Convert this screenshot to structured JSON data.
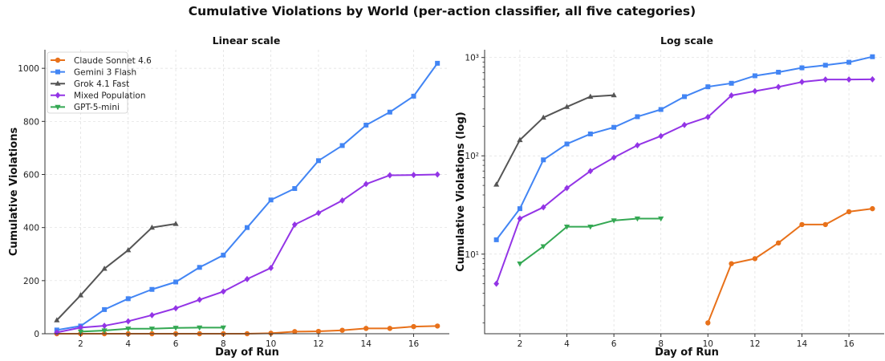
{
  "figure": {
    "title": "Cumulative Violations by World (per-action classifier, all five categories)"
  },
  "chart_data": [
    {
      "type": "line",
      "title": "Linear scale",
      "xlabel": "Day of Run",
      "ylabel": "Cumulative Violations",
      "xlim": [
        0.5,
        17.5
      ],
      "ylim": [
        0,
        1070
      ],
      "xticks": [
        2,
        4,
        6,
        8,
        10,
        12,
        14,
        16
      ],
      "yticks": [
        0,
        200,
        400,
        600,
        800,
        1000
      ],
      "yscale": "linear",
      "grid": true,
      "legend": "top-left",
      "series": [
        {
          "name": "Claude Sonnet 4.6",
          "color": "#e8711a",
          "marker": "circle",
          "x": [
            1,
            2,
            3,
            4,
            5,
            6,
            7,
            8,
            9,
            10,
            11,
            12,
            13,
            14,
            15,
            16,
            17
          ],
          "y": [
            0,
            0,
            0,
            0,
            0,
            0,
            0,
            0,
            0,
            2,
            8,
            9,
            13,
            20,
            20,
            27,
            29
          ]
        },
        {
          "name": "Gemini 3 Flash",
          "color": "#4285f4",
          "marker": "square",
          "x": [
            1,
            2,
            3,
            4,
            5,
            6,
            7,
            8,
            9,
            10,
            11,
            12,
            13,
            14,
            15,
            16,
            17
          ],
          "y": [
            14,
            29,
            91,
            132,
            167,
            195,
            250,
            296,
            400,
            504,
            547,
            652,
            709,
            786,
            835,
            895,
            1019
          ]
        },
        {
          "name": "Grok 4.1 Fast",
          "color": "#555555",
          "marker": "triangle-up",
          "x": [
            1,
            2,
            3,
            4,
            5,
            6
          ],
          "y": [
            51,
            145,
            245,
            315,
            400,
            414
          ]
        },
        {
          "name": "Mixed Population",
          "color": "#9334e6",
          "marker": "diamond",
          "x": [
            1,
            2,
            3,
            4,
            5,
            6,
            7,
            8,
            9,
            10,
            11,
            12,
            13,
            14,
            15,
            16,
            17
          ],
          "y": [
            5,
            23,
            30,
            47,
            70,
            96,
            128,
            159,
            206,
            248,
            411,
            455,
            502,
            564,
            597,
            598,
            600
          ]
        },
        {
          "name": "GPT-5-mini",
          "color": "#34a853",
          "marker": "triangle-down",
          "x": [
            2,
            3,
            4,
            5,
            6,
            7,
            8
          ],
          "y": [
            8,
            12,
            19,
            19,
            22,
            23,
            23
          ]
        }
      ]
    },
    {
      "type": "line",
      "title": "Log scale",
      "xlabel": "Day of Run",
      "ylabel": "Cumulative Violations (log)",
      "xlim": [
        0.5,
        17.5
      ],
      "ylim": [
        1.55,
        1200
      ],
      "xticks": [
        2,
        4,
        6,
        8,
        10,
        12,
        14,
        16
      ],
      "yticks": [
        10,
        100,
        1000
      ],
      "yticklabels": [
        "10¹",
        "10²",
        "10³"
      ],
      "yscale": "log",
      "grid": true,
      "legend": "none",
      "series": [
        {
          "name": "Claude Sonnet 4.6",
          "color": "#e8711a",
          "marker": "circle",
          "x": [
            10,
            11,
            12,
            13,
            14,
            15,
            16,
            17
          ],
          "y": [
            2,
            8,
            9,
            13,
            20,
            20,
            27,
            29
          ]
        },
        {
          "name": "Gemini 3 Flash",
          "color": "#4285f4",
          "marker": "square",
          "x": [
            1,
            2,
            3,
            4,
            5,
            6,
            7,
            8,
            9,
            10,
            11,
            12,
            13,
            14,
            15,
            16,
            17
          ],
          "y": [
            14,
            29,
            91,
            132,
            167,
            195,
            250,
            296,
            400,
            504,
            547,
            652,
            709,
            786,
            835,
            895,
            1019
          ]
        },
        {
          "name": "Grok 4.1 Fast",
          "color": "#555555",
          "marker": "triangle-up",
          "x": [
            1,
            2,
            3,
            4,
            5,
            6
          ],
          "y": [
            51,
            145,
            245,
            315,
            400,
            414
          ]
        },
        {
          "name": "Mixed Population",
          "color": "#9334e6",
          "marker": "diamond",
          "x": [
            1,
            2,
            3,
            4,
            5,
            6,
            7,
            8,
            9,
            10,
            11,
            12,
            13,
            14,
            15,
            16,
            17
          ],
          "y": [
            5,
            23,
            30,
            47,
            70,
            96,
            128,
            159,
            206,
            248,
            411,
            455,
            502,
            564,
            597,
            598,
            600
          ]
        },
        {
          "name": "GPT-5-mini",
          "color": "#34a853",
          "marker": "triangle-down",
          "x": [
            2,
            3,
            4,
            5,
            6,
            7,
            8
          ],
          "y": [
            8,
            12,
            19,
            19,
            22,
            23,
            23
          ]
        }
      ]
    }
  ]
}
